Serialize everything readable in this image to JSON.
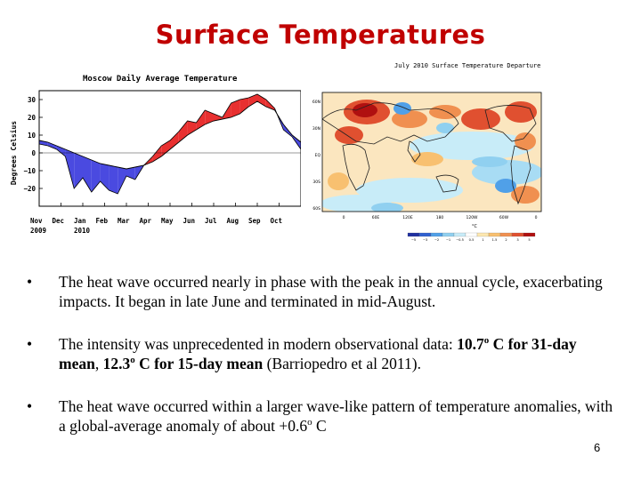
{
  "slide": {
    "title": "Surface Temperatures",
    "page_number": "6",
    "bullets": [
      {
        "text": "The heat wave occurred nearly in phase with the peak in the annual cycle, exacerbating impacts.  It began in late June and terminated in mid-August."
      },
      {
        "text_a": "The intensity was unprecedented in modern observational data: ",
        "bold_1a": "10.7",
        "sup_1": "o",
        "bold_1b": " C for 31-day mean",
        "sep": ", ",
        "bold_2a": "12.3",
        "sup_2": "o",
        "bold_2b": " C for 15-day mean",
        "text_b": " (Barriopedro et al 2011)."
      },
      {
        "text_a": "The heat wave occurred within a larger wave-like pattern of temperature anomalies, with a global-average anomaly of about +0.6",
        "sup": "o",
        "text_b": " C"
      }
    ]
  },
  "chart_data": [
    {
      "type": "area",
      "title": "Moscow Daily Average Temperature",
      "ylabel": "Degrees Celsius",
      "ylim": [
        -30,
        35
      ],
      "yticks": [
        "30",
        "20",
        "10",
        "0",
        "−10",
        "−20"
      ],
      "ytick_values": [
        30,
        20,
        10,
        0,
        -10,
        -20
      ],
      "x_tick_labels": [
        "Nov",
        "Dec",
        "Jan",
        "Feb",
        "Mar",
        "Apr",
        "May",
        "Jun",
        "Jul",
        "Aug",
        "Sep",
        "Oct"
      ],
      "x_year_labels": [
        "2009",
        "2010"
      ],
      "colors": {
        "above_climatology": "#e83030",
        "below_climatology": "#4a4ae0",
        "line": "#000000"
      },
      "series": [
        {
          "values": [
            7,
            6,
            4,
            2,
            0,
            -2,
            -4,
            -6,
            -7,
            -8,
            -9,
            -8,
            -7,
            -5,
            -2,
            2,
            6,
            10,
            13,
            16,
            18,
            19,
            20,
            22,
            26,
            29,
            26,
            24,
            16,
            10,
            6
          ]
        },
        {
          "values": [
            5,
            4,
            2,
            -2,
            -20,
            -14,
            -22,
            -16,
            -21,
            -23,
            -13,
            -15,
            -7,
            -2,
            4,
            7,
            12,
            18,
            17,
            24,
            22,
            20,
            28,
            30,
            31,
            33,
            30,
            25,
            13,
            9,
            2
          ]
        }
      ]
    },
    {
      "type": "heatmap",
      "title": "July 2010 Surface Temperature Departure",
      "xticks": [
        "0",
        "60E",
        "120E",
        "180",
        "120W",
        "60W",
        "0"
      ],
      "yticks": [
        "60N",
        "30N",
        "EQ",
        "30S",
        "60S"
      ],
      "colorbar_label": "°C",
      "colorbar_ticks": [
        "−5",
        "−3",
        "−2",
        "−1",
        "−0.5",
        "0.5",
        "1",
        "1.5",
        "2",
        "3",
        "5"
      ],
      "colorbar_colors": [
        "#2030a0",
        "#3060d0",
        "#50a0e8",
        "#90d0f0",
        "#c8ecf8",
        "#ffffff",
        "#fde8b0",
        "#f8c070",
        "#f09050",
        "#e05030",
        "#b01010"
      ]
    }
  ]
}
